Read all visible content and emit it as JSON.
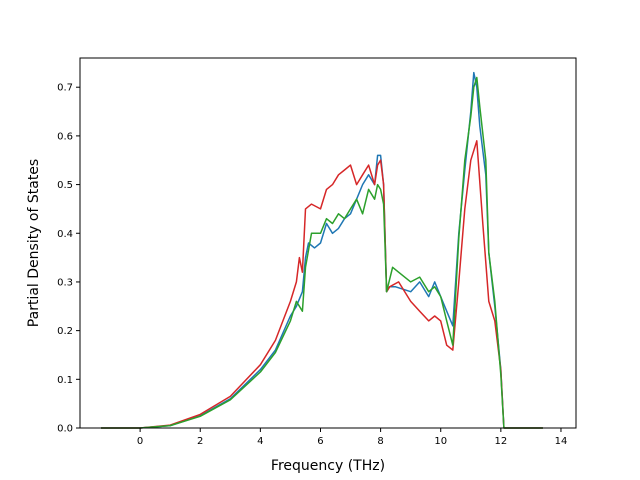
{
  "chart_data": {
    "type": "line",
    "title": "",
    "xlabel": "Frequency (THz)",
    "ylabel": "Partial Density of States",
    "xlim": [
      -2.0,
      14.5
    ],
    "ylim": [
      0.0,
      0.76
    ],
    "xticks": [
      0,
      2,
      4,
      6,
      8,
      10,
      12,
      14
    ],
    "xtick_labels": [
      "0",
      "2",
      "4",
      "6",
      "8",
      "10",
      "12",
      "14"
    ],
    "yticks": [
      0.0,
      0.1,
      0.2,
      0.3,
      0.4,
      0.5,
      0.6,
      0.7
    ],
    "ytick_labels": [
      "0.0",
      "0.1",
      "0.2",
      "0.3",
      "0.4",
      "0.5",
      "0.6",
      "0.7"
    ],
    "grid": false,
    "legend": "none",
    "series": [
      {
        "color": "#1f77b4",
        "x": [
          -1.3,
          0.0,
          1.0,
          2.0,
          3.0,
          4.0,
          4.5,
          5.0,
          5.2,
          5.4,
          5.5,
          5.6,
          5.8,
          6.0,
          6.2,
          6.4,
          6.6,
          6.8,
          7.0,
          7.2,
          7.4,
          7.6,
          7.8,
          7.9,
          8.0,
          8.1,
          8.2,
          8.3,
          8.5,
          9.0,
          9.3,
          9.6,
          9.8,
          10.0,
          10.2,
          10.4,
          10.6,
          10.8,
          11.0,
          11.1,
          11.2,
          11.3,
          11.5,
          11.6,
          11.8,
          12.0,
          12.1,
          13.4
        ],
        "y": [
          0.0,
          0.0,
          0.005,
          0.025,
          0.06,
          0.12,
          0.16,
          0.23,
          0.25,
          0.28,
          0.35,
          0.38,
          0.37,
          0.38,
          0.42,
          0.4,
          0.41,
          0.43,
          0.44,
          0.47,
          0.5,
          0.52,
          0.5,
          0.56,
          0.56,
          0.5,
          0.28,
          0.29,
          0.29,
          0.28,
          0.3,
          0.27,
          0.3,
          0.27,
          0.24,
          0.21,
          0.4,
          0.53,
          0.65,
          0.73,
          0.7,
          0.62,
          0.52,
          0.36,
          0.25,
          0.12,
          0.0,
          0.0
        ]
      },
      {
        "color": "#d62728",
        "x": [
          -1.3,
          0.0,
          1.0,
          2.0,
          3.0,
          4.0,
          4.5,
          5.0,
          5.2,
          5.3,
          5.4,
          5.5,
          5.7,
          6.0,
          6.2,
          6.4,
          6.6,
          6.8,
          7.0,
          7.2,
          7.4,
          7.6,
          7.8,
          7.9,
          8.0,
          8.1,
          8.2,
          8.3,
          8.6,
          9.0,
          9.3,
          9.6,
          9.8,
          10.0,
          10.2,
          10.4,
          10.6,
          10.8,
          11.0,
          11.2,
          11.4,
          11.6,
          11.8,
          12.0,
          12.1,
          13.4
        ],
        "y": [
          0.0,
          0.0,
          0.006,
          0.028,
          0.065,
          0.13,
          0.18,
          0.26,
          0.3,
          0.35,
          0.32,
          0.45,
          0.46,
          0.45,
          0.49,
          0.5,
          0.52,
          0.53,
          0.54,
          0.5,
          0.52,
          0.54,
          0.5,
          0.54,
          0.55,
          0.5,
          0.28,
          0.29,
          0.3,
          0.26,
          0.24,
          0.22,
          0.23,
          0.22,
          0.17,
          0.16,
          0.3,
          0.45,
          0.55,
          0.59,
          0.42,
          0.26,
          0.22,
          0.12,
          0.0,
          0.0
        ]
      },
      {
        "color": "#2ca02c",
        "x": [
          -1.3,
          0.0,
          1.0,
          2.0,
          3.0,
          4.0,
          4.5,
          5.0,
          5.2,
          5.4,
          5.5,
          5.7,
          6.0,
          6.2,
          6.4,
          6.6,
          6.8,
          7.0,
          7.2,
          7.4,
          7.6,
          7.8,
          7.9,
          8.0,
          8.1,
          8.2,
          8.4,
          8.6,
          9.0,
          9.3,
          9.6,
          9.8,
          10.0,
          10.2,
          10.4,
          10.6,
          10.8,
          11.0,
          11.1,
          11.2,
          11.3,
          11.5,
          11.6,
          11.8,
          12.0,
          12.1,
          13.4
        ],
        "y": [
          0.0,
          0.0,
          0.005,
          0.024,
          0.058,
          0.115,
          0.155,
          0.22,
          0.26,
          0.24,
          0.33,
          0.4,
          0.4,
          0.43,
          0.42,
          0.44,
          0.43,
          0.45,
          0.47,
          0.44,
          0.49,
          0.47,
          0.5,
          0.49,
          0.46,
          0.28,
          0.33,
          0.32,
          0.3,
          0.31,
          0.28,
          0.29,
          0.27,
          0.22,
          0.17,
          0.39,
          0.55,
          0.64,
          0.7,
          0.72,
          0.66,
          0.55,
          0.36,
          0.26,
          0.11,
          0.0,
          0.0
        ]
      }
    ]
  }
}
